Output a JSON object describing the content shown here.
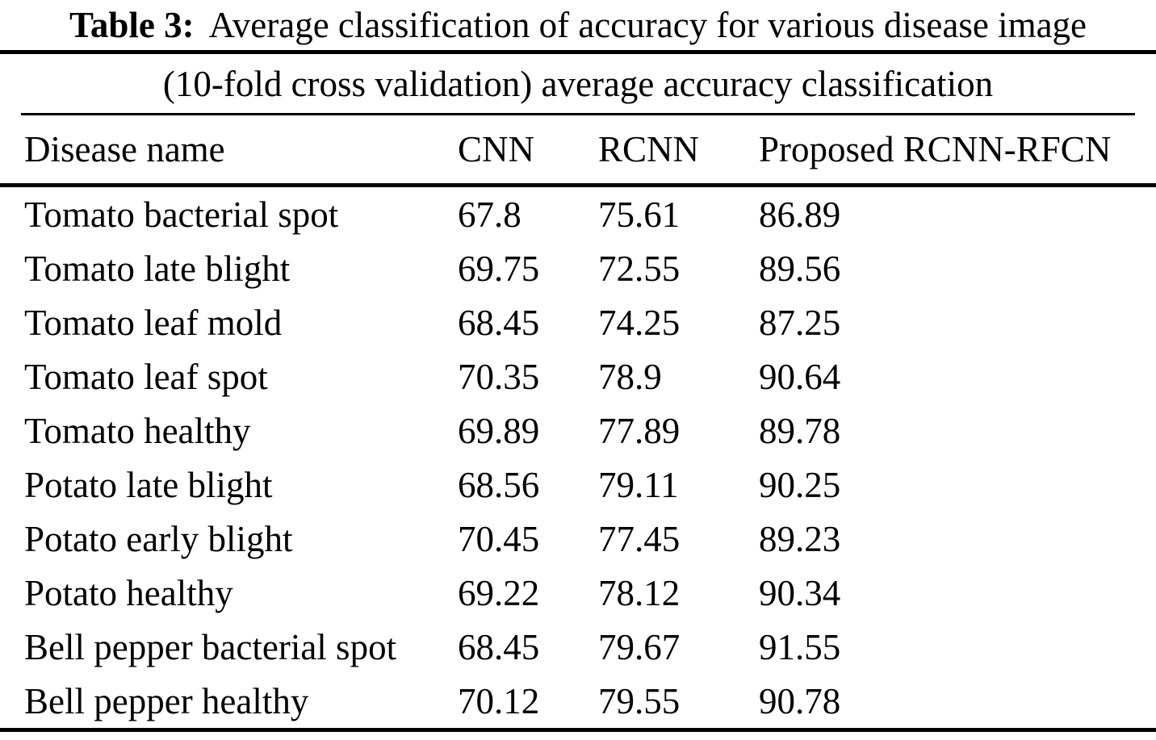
{
  "caption": {
    "label": "Table 3:",
    "text": "Average classification of accuracy for various disease image"
  },
  "table": {
    "subtitle": "(10-fold cross validation) average accuracy classification",
    "columns": [
      "Disease name",
      "CNN",
      "RCNN",
      "Proposed RCNN-RFCN"
    ],
    "rows": [
      {
        "disease": "Tomato bacterial spot",
        "cnn": "67.8",
        "rcnn": "75.61",
        "proposed": "86.89"
      },
      {
        "disease": "Tomato late blight",
        "cnn": "69.75",
        "rcnn": "72.55",
        "proposed": "89.56"
      },
      {
        "disease": "Tomato leaf mold",
        "cnn": "68.45",
        "rcnn": "74.25",
        "proposed": "87.25"
      },
      {
        "disease": "Tomato leaf spot",
        "cnn": "70.35",
        "rcnn": "78.9",
        "proposed": "90.64"
      },
      {
        "disease": "Tomato healthy",
        "cnn": "69.89",
        "rcnn": "77.89",
        "proposed": "89.78"
      },
      {
        "disease": "Potato late blight",
        "cnn": "68.56",
        "rcnn": "79.11",
        "proposed": "90.25"
      },
      {
        "disease": "Potato early blight",
        "cnn": "70.45",
        "rcnn": "77.45",
        "proposed": "89.23"
      },
      {
        "disease": "Potato healthy",
        "cnn": "69.22",
        "rcnn": "78.12",
        "proposed": "90.34"
      },
      {
        "disease": "Bell pepper bacterial spot",
        "cnn": "68.45",
        "rcnn": "79.67",
        "proposed": "91.55"
      },
      {
        "disease": "Bell pepper healthy",
        "cnn": "70.12",
        "rcnn": "79.55",
        "proposed": "90.78"
      }
    ]
  },
  "colors": {
    "background": "#ffffff",
    "text": "#000000",
    "rule": "#000000"
  }
}
